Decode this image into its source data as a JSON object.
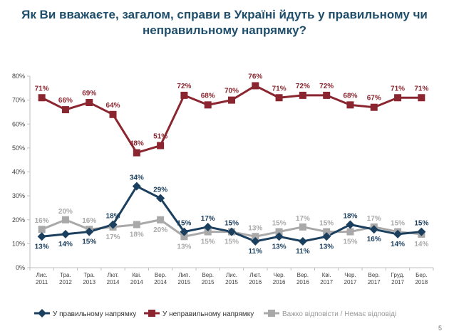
{
  "header": {
    "title_line1": "Як Ви вважаєте, загалом, справи в Україні йдуть у правильному чи",
    "title_line2": "неправильному напрямку?"
  },
  "page_number": "5",
  "colors": {
    "right_direction": "#1b3f5e",
    "wrong_direction": "#8b2630",
    "hard_to_say": "#a9a9a9",
    "title": "#1f4e6b"
  },
  "chart_data": {
    "type": "line",
    "categories": [
      [
        "Лис.",
        "2011"
      ],
      [
        "Тра.",
        "2012"
      ],
      [
        "Тра.",
        "2013"
      ],
      [
        "Лют.",
        "2014"
      ],
      [
        "Кві.",
        "2014"
      ],
      [
        "Вер.",
        "2014"
      ],
      [
        "Лип.",
        "2015"
      ],
      [
        "Вер.",
        "2015"
      ],
      [
        "Лис.",
        "2015"
      ],
      [
        "Лют.",
        "2016"
      ],
      [
        "Чер.",
        "2016"
      ],
      [
        "Вер.",
        "2016"
      ],
      [
        "Кві.",
        "2017"
      ],
      [
        "Чер.",
        "2017"
      ],
      [
        "Вер.",
        "2017"
      ],
      [
        "Груд.",
        "2017"
      ],
      [
        "Бер.",
        "2018"
      ]
    ],
    "y_ticks": [
      "0%",
      "10%",
      "20%",
      "30%",
      "40%",
      "50%",
      "60%",
      "70%",
      "80%"
    ],
    "ylim": [
      0,
      80
    ],
    "legend_position": "bottom",
    "series": [
      {
        "name": "У правильному напрямку",
        "key": "right",
        "marker": "diamond",
        "values": [
          13,
          14,
          15,
          18,
          34,
          29,
          15,
          17,
          15,
          11,
          13,
          11,
          13,
          18,
          16,
          14,
          15
        ],
        "labels": [
          "13%",
          "14%",
          "15%",
          "18%",
          "34%",
          "29%",
          "15%",
          "17%",
          "15%",
          "11%",
          "13%",
          "11%",
          "13%",
          "18%",
          "16%",
          "14%",
          "15%"
        ]
      },
      {
        "name": "У неправильному напрямку",
        "key": "wrong",
        "marker": "square",
        "values": [
          71,
          66,
          69,
          64,
          48,
          51,
          72,
          68,
          70,
          76,
          71,
          72,
          72,
          68,
          67,
          71,
          71
        ],
        "labels": [
          "71%",
          "66%",
          "69%",
          "64%",
          "48%",
          "51%",
          "72%",
          "68%",
          "70%",
          "76%",
          "71%",
          "72%",
          "72%",
          "68%",
          "67%",
          "71%",
          "71%"
        ]
      },
      {
        "name": "Важко відповісти / Немає відповіді",
        "key": "hard",
        "marker": "square",
        "values": [
          16,
          20,
          16,
          17,
          18,
          20,
          13,
          15,
          15,
          13,
          15,
          17,
          15,
          15,
          17,
          15,
          14
        ],
        "labels": [
          "16%",
          "20%",
          "16%",
          "17%",
          "18%",
          "20%",
          "13%",
          "15%",
          "15%",
          "13%",
          "15%",
          "17%",
          "15%",
          "15%",
          "17%",
          "15%",
          "14%"
        ]
      }
    ]
  }
}
